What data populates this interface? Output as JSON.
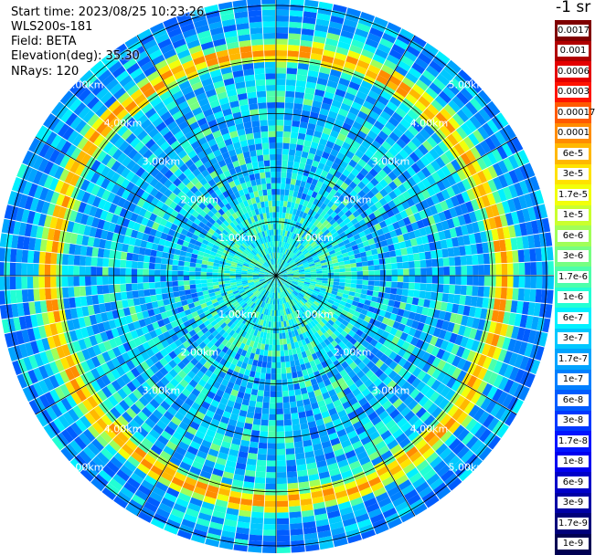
{
  "info": {
    "start_time": "Start time: 2023/08/25 10:23:26",
    "instrument": "WLS200s-181",
    "field": "Field: BETA",
    "elevation": "Elevation(deg): 35.30",
    "nrays": "NRays: 120"
  },
  "colorbar": {
    "unit": "-1 sr",
    "labels": [
      "0.0017",
      "0.001",
      "0.0006",
      "0.0003",
      "0.00017",
      "0.0001",
      "6e-5",
      "3e-5",
      "1.7e-5",
      "1e-5",
      "6e-6",
      "3e-6",
      "1.7e-6",
      "1e-6",
      "6e-7",
      "3e-7",
      "1.7e-7",
      "1e-7",
      "6e-8",
      "3e-8",
      "1.7e-8",
      "1e-8",
      "6e-9",
      "3e-9",
      "1.7e-9",
      "1e-9"
    ],
    "colors": [
      "#7f0000",
      "#b00000",
      "#e40000",
      "#ff1400",
      "#ff5a00",
      "#ff8c00",
      "#ffb800",
      "#ffe200",
      "#f2ff0a",
      "#caff2e",
      "#a0ff58",
      "#76ff82",
      "#4cffab",
      "#22ffd4",
      "#00f0ff",
      "#00c8ff",
      "#00a4ff",
      "#0080ff",
      "#005cff",
      "#0038ff",
      "#0014ff",
      "#0000f0",
      "#0000c8",
      "#0000a4",
      "#00007a",
      "#000052"
    ]
  },
  "ring_labels": [
    "1.00km",
    "2.00km",
    "3.00km",
    "4.00km",
    "5.00km"
  ],
  "rays": 120
}
